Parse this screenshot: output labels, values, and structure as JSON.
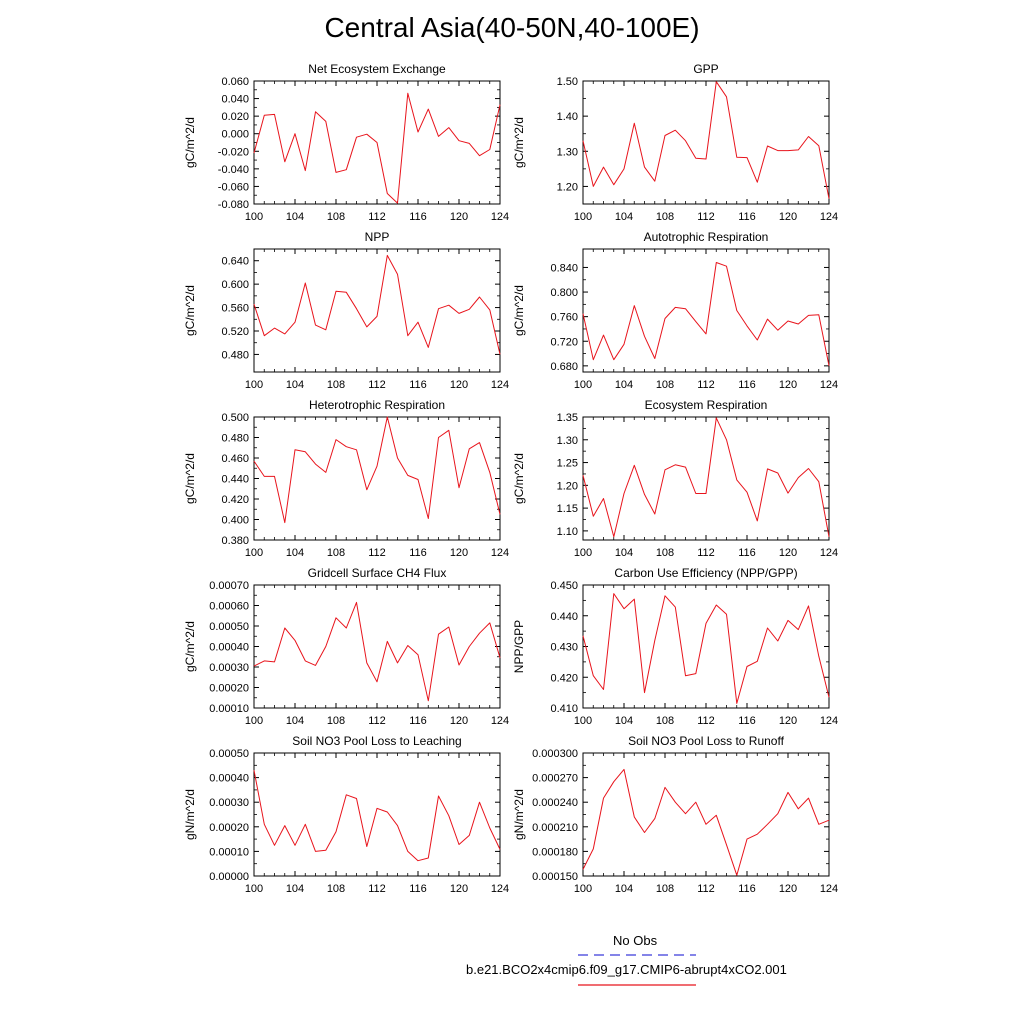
{
  "figure_title": "Central Asia(40-50N,40-100E)",
  "legend": {
    "obs_label": "No Obs",
    "model_label": "b.e21.BCO2x4cmip6.f09_g17.CMIP6-abrupt4xCO2.001",
    "obs_color": "#3b3bd9",
    "model_color": "#e8141c"
  },
  "chart_data": [
    {
      "type": "line",
      "title": "Net Ecosystem Exchange",
      "ylabel": "gC/m^2/d",
      "xlabel": "",
      "xlim": [
        100,
        124
      ],
      "ylim": [
        -0.08,
        0.06
      ],
      "xticks": [
        100,
        104,
        108,
        112,
        116,
        120,
        124
      ],
      "yticks": [
        -0.08,
        -0.06,
        -0.04,
        -0.02,
        0.0,
        0.02,
        0.04,
        0.06
      ],
      "ytick_labels": [
        "-0.080",
        "-0.060",
        "-0.040",
        "-0.020",
        "0.000",
        "0.020",
        "0.040",
        "0.060"
      ],
      "x": [
        100,
        101,
        102,
        103,
        104,
        105,
        106,
        107,
        108,
        109,
        110,
        111,
        112,
        113,
        114,
        115,
        116,
        117,
        118,
        119,
        120,
        121,
        122,
        123,
        124
      ],
      "series": [
        {
          "name": "b.e21.BCO2x4cmip6.f09_g17.CMIP6-abrupt4xCO2.001",
          "values": [
            -0.022,
            0.021,
            0.022,
            -0.032,
            0.0,
            -0.042,
            0.025,
            0.014,
            -0.044,
            -0.041,
            -0.004,
            -0.0005,
            -0.01,
            -0.068,
            -0.079,
            0.046,
            0.002,
            0.028,
            -0.003,
            0.007,
            -0.008,
            -0.011,
            -0.025,
            -0.018,
            0.033
          ]
        }
      ]
    },
    {
      "type": "line",
      "title": "GPP",
      "ylabel": "gC/m^2/d",
      "xlabel": "",
      "xlim": [
        100,
        124
      ],
      "ylim": [
        1.15,
        1.5
      ],
      "xticks": [
        100,
        104,
        108,
        112,
        116,
        120,
        124
      ],
      "yticks": [
        1.2,
        1.3,
        1.4,
        1.5
      ],
      "ytick_labels": [
        "1.20",
        "1.30",
        "1.40",
        "1.50"
      ],
      "x": [
        100,
        101,
        102,
        103,
        104,
        105,
        106,
        107,
        108,
        109,
        110,
        111,
        112,
        113,
        114,
        115,
        116,
        117,
        118,
        119,
        120,
        121,
        122,
        123,
        124
      ],
      "series": [
        {
          "name": "b.e21.BCO2x4cmip6.f09_g17.CMIP6-abrupt4xCO2.001",
          "values": [
            1.33,
            1.2,
            1.255,
            1.205,
            1.25,
            1.38,
            1.255,
            1.215,
            1.345,
            1.36,
            1.33,
            1.28,
            1.278,
            1.498,
            1.455,
            1.283,
            1.282,
            1.212,
            1.315,
            1.302,
            1.302,
            1.304,
            1.342,
            1.316,
            1.165
          ]
        }
      ]
    },
    {
      "type": "line",
      "title": "NPP",
      "ylabel": "gC/m^2/d",
      "xlabel": "",
      "xlim": [
        100,
        124
      ],
      "ylim": [
        0.45,
        0.66
      ],
      "xticks": [
        100,
        104,
        108,
        112,
        116,
        120,
        124
      ],
      "yticks": [
        0.48,
        0.52,
        0.56,
        0.6,
        0.64
      ],
      "ytick_labels": [
        "0.480",
        "0.520",
        "0.560",
        "0.600",
        "0.640"
      ],
      "x": [
        100,
        101,
        102,
        103,
        104,
        105,
        106,
        107,
        108,
        109,
        110,
        111,
        112,
        113,
        114,
        115,
        116,
        117,
        118,
        119,
        120,
        121,
        122,
        123,
        124
      ],
      "series": [
        {
          "name": "b.e21.BCO2x4cmip6.f09_g17.CMIP6-abrupt4xCO2.001",
          "values": [
            0.566,
            0.512,
            0.525,
            0.515,
            0.535,
            0.602,
            0.53,
            0.522,
            0.588,
            0.586,
            0.558,
            0.527,
            0.545,
            0.649,
            0.617,
            0.512,
            0.535,
            0.492,
            0.558,
            0.564,
            0.55,
            0.557,
            0.578,
            0.556,
            0.48
          ]
        }
      ]
    },
    {
      "type": "line",
      "title": "Autotrophic Respiration",
      "ylabel": "gC/m^2/d",
      "xlabel": "",
      "xlim": [
        100,
        124
      ],
      "ylim": [
        0.67,
        0.87
      ],
      "xticks": [
        100,
        104,
        108,
        112,
        116,
        120,
        124
      ],
      "yticks": [
        0.68,
        0.72,
        0.76,
        0.8,
        0.84
      ],
      "ytick_labels": [
        "0.680",
        "0.720",
        "0.760",
        "0.800",
        "0.840"
      ],
      "x": [
        100,
        101,
        102,
        103,
        104,
        105,
        106,
        107,
        108,
        109,
        110,
        111,
        112,
        113,
        114,
        115,
        116,
        117,
        118,
        119,
        120,
        121,
        122,
        123,
        124
      ],
      "series": [
        {
          "name": "b.e21.BCO2x4cmip6.f09_g17.CMIP6-abrupt4xCO2.001",
          "values": [
            0.765,
            0.69,
            0.73,
            0.69,
            0.715,
            0.778,
            0.728,
            0.692,
            0.757,
            0.775,
            0.773,
            0.752,
            0.732,
            0.848,
            0.842,
            0.77,
            0.745,
            0.722,
            0.756,
            0.738,
            0.753,
            0.748,
            0.762,
            0.763,
            0.68
          ]
        }
      ]
    },
    {
      "type": "line",
      "title": "Heterotrophic Respiration",
      "ylabel": "gC/m^2/d",
      "xlabel": "",
      "xlim": [
        100,
        124
      ],
      "ylim": [
        0.38,
        0.5
      ],
      "xticks": [
        100,
        104,
        108,
        112,
        116,
        120,
        124
      ],
      "yticks": [
        0.38,
        0.4,
        0.42,
        0.44,
        0.46,
        0.48,
        0.5
      ],
      "ytick_labels": [
        "0.380",
        "0.400",
        "0.420",
        "0.440",
        "0.460",
        "0.480",
        "0.500"
      ],
      "x": [
        100,
        101,
        102,
        103,
        104,
        105,
        106,
        107,
        108,
        109,
        110,
        111,
        112,
        113,
        114,
        115,
        116,
        117,
        118,
        119,
        120,
        121,
        122,
        123,
        124
      ],
      "series": [
        {
          "name": "b.e21.BCO2x4cmip6.f09_g17.CMIP6-abrupt4xCO2.001",
          "values": [
            0.457,
            0.442,
            0.442,
            0.397,
            0.468,
            0.466,
            0.454,
            0.446,
            0.478,
            0.471,
            0.468,
            0.429,
            0.452,
            0.5,
            0.46,
            0.443,
            0.439,
            0.401,
            0.48,
            0.487,
            0.431,
            0.469,
            0.475,
            0.446,
            0.405
          ]
        }
      ]
    },
    {
      "type": "line",
      "title": "Ecosystem Respiration",
      "ylabel": "gC/m^2/d",
      "xlabel": "",
      "xlim": [
        100,
        124
      ],
      "ylim": [
        1.08,
        1.35
      ],
      "xticks": [
        100,
        104,
        108,
        112,
        116,
        120,
        124
      ],
      "yticks": [
        1.1,
        1.15,
        1.2,
        1.25,
        1.3,
        1.35
      ],
      "ytick_labels": [
        "1.10",
        "1.15",
        "1.20",
        "1.25",
        "1.30",
        "1.35"
      ],
      "x": [
        100,
        101,
        102,
        103,
        104,
        105,
        106,
        107,
        108,
        109,
        110,
        111,
        112,
        113,
        114,
        115,
        116,
        117,
        118,
        119,
        120,
        121,
        122,
        123,
        124
      ],
      "series": [
        {
          "name": "b.e21.BCO2x4cmip6.f09_g17.CMIP6-abrupt4xCO2.001",
          "values": [
            1.222,
            1.132,
            1.171,
            1.087,
            1.182,
            1.244,
            1.18,
            1.137,
            1.234,
            1.245,
            1.24,
            1.182,
            1.182,
            1.348,
            1.3,
            1.212,
            1.185,
            1.122,
            1.236,
            1.227,
            1.183,
            1.217,
            1.237,
            1.208,
            1.087
          ]
        }
      ]
    },
    {
      "type": "line",
      "title": "Gridcell Surface CH4 Flux",
      "ylabel": "gC/m^2/d",
      "xlabel": "",
      "xlim": [
        100,
        124
      ],
      "ylim": [
        0.0001,
        0.0007
      ],
      "xticks": [
        100,
        104,
        108,
        112,
        116,
        120,
        124
      ],
      "yticks": [
        0.0001,
        0.0002,
        0.0003,
        0.0004,
        0.0005,
        0.0006,
        0.0007
      ],
      "ytick_labels": [
        "0.00010",
        "0.00020",
        "0.00030",
        "0.00040",
        "0.00050",
        "0.00060",
        "0.00070"
      ],
      "x": [
        100,
        101,
        102,
        103,
        104,
        105,
        106,
        107,
        108,
        109,
        110,
        111,
        112,
        113,
        114,
        115,
        116,
        117,
        118,
        119,
        120,
        121,
        122,
        123,
        124
      ],
      "series": [
        {
          "name": "b.e21.BCO2x4cmip6.f09_g17.CMIP6-abrupt4xCO2.001",
          "values": [
            0.000305,
            0.00033,
            0.000325,
            0.00049,
            0.00043,
            0.00033,
            0.000308,
            0.0004,
            0.00054,
            0.00049,
            0.000615,
            0.00032,
            0.000228,
            0.000425,
            0.00032,
            0.000405,
            0.00036,
            0.000135,
            0.00046,
            0.000495,
            0.00031,
            0.0004,
            0.000465,
            0.000515,
            0.000345
          ]
        }
      ]
    },
    {
      "type": "line",
      "title": "Carbon Use Efficiency (NPP/GPP)",
      "ylabel": "NPP/GPP",
      "xlabel": "",
      "xlim": [
        100,
        124
      ],
      "ylim": [
        0.41,
        0.45
      ],
      "xticks": [
        100,
        104,
        108,
        112,
        116,
        120,
        124
      ],
      "yticks": [
        0.41,
        0.42,
        0.43,
        0.44,
        0.45
      ],
      "ytick_labels": [
        "0.410",
        "0.420",
        "0.430",
        "0.440",
        "0.450"
      ],
      "x": [
        100,
        101,
        102,
        103,
        104,
        105,
        106,
        107,
        108,
        109,
        110,
        111,
        112,
        113,
        114,
        115,
        116,
        117,
        118,
        119,
        120,
        121,
        122,
        123,
        124
      ],
      "series": [
        {
          "name": "b.e21.BCO2x4cmip6.f09_g17.CMIP6-abrupt4xCO2.001",
          "values": [
            0.4335,
            0.4205,
            0.416,
            0.4472,
            0.4423,
            0.4454,
            0.415,
            0.432,
            0.4465,
            0.4428,
            0.4205,
            0.4212,
            0.4375,
            0.4435,
            0.4405,
            0.4115,
            0.4235,
            0.4252,
            0.436,
            0.4318,
            0.4385,
            0.4355,
            0.4432,
            0.4268,
            0.4135
          ]
        }
      ]
    },
    {
      "type": "line",
      "title": "Soil NO3 Pool Loss to Leaching",
      "ylabel": "gN/m^2/d",
      "xlabel": "",
      "xlim": [
        100,
        124
      ],
      "ylim": [
        0.0,
        0.0005
      ],
      "xticks": [
        100,
        104,
        108,
        112,
        116,
        120,
        124
      ],
      "yticks": [
        0.0,
        0.0001,
        0.0002,
        0.0003,
        0.0004,
        0.0005
      ],
      "ytick_labels": [
        "0.00000",
        "0.00010",
        "0.00020",
        "0.00030",
        "0.00040",
        "0.00050"
      ],
      "x": [
        100,
        101,
        102,
        103,
        104,
        105,
        106,
        107,
        108,
        109,
        110,
        111,
        112,
        113,
        114,
        115,
        116,
        117,
        118,
        119,
        120,
        121,
        122,
        123,
        124
      ],
      "series": [
        {
          "name": "b.e21.BCO2x4cmip6.f09_g17.CMIP6-abrupt4xCO2.001",
          "values": [
            0.00043,
            0.00021,
            0.000125,
            0.000205,
            0.000125,
            0.00021,
            0.0001,
            0.000105,
            0.00018,
            0.00033,
            0.000315,
            0.00012,
            0.000275,
            0.00026,
            0.000205,
            0.0001,
            6.2e-05,
            7.3e-05,
            0.000325,
            0.000245,
            0.000128,
            0.000165,
            0.0003,
            0.000195,
            0.000108
          ]
        }
      ]
    },
    {
      "type": "line",
      "title": "Soil NO3 Pool Loss to Runoff",
      "ylabel": "gN/m^2/d",
      "xlabel": "",
      "xlim": [
        100,
        124
      ],
      "ylim": [
        0.00015,
        0.0003
      ],
      "xticks": [
        100,
        104,
        108,
        112,
        116,
        120,
        124
      ],
      "yticks": [
        0.00015,
        0.00018,
        0.00021,
        0.00024,
        0.00027,
        0.0003
      ],
      "ytick_labels": [
        "0.000150",
        "0.000180",
        "0.000210",
        "0.000240",
        "0.000270",
        "0.000300"
      ],
      "x": [
        100,
        101,
        102,
        103,
        104,
        105,
        106,
        107,
        108,
        109,
        110,
        111,
        112,
        113,
        114,
        115,
        116,
        117,
        118,
        119,
        120,
        121,
        122,
        123,
        124
      ],
      "series": [
        {
          "name": "b.e21.BCO2x4cmip6.f09_g17.CMIP6-abrupt4xCO2.001",
          "values": [
            0.000158,
            0.000183,
            0.000245,
            0.000265,
            0.00028,
            0.000222,
            0.000203,
            0.00022,
            0.000258,
            0.00024,
            0.000226,
            0.00024,
            0.000213,
            0.000224,
            0.000188,
            0.000151,
            0.000195,
            0.000201,
            0.000213,
            0.000226,
            0.000252,
            0.000232,
            0.000245,
            0.000213,
            0.000218
          ]
        }
      ]
    }
  ]
}
